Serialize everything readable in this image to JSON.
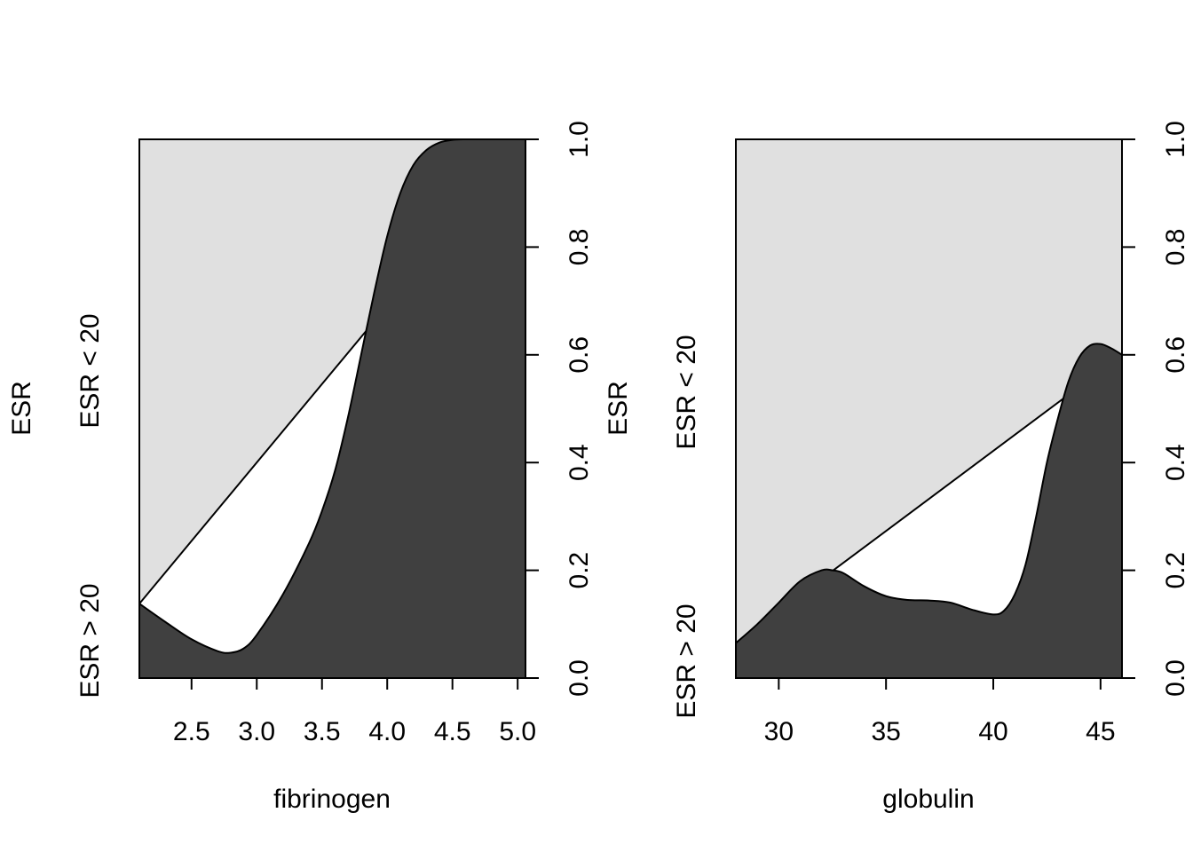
{
  "chart_data": [
    {
      "type": "area",
      "subtype": "conditional-density",
      "xlabel": "fibrinogen",
      "ylabel": "ESR",
      "xlim": [
        2.1,
        5.06
      ],
      "ylim": [
        0,
        1
      ],
      "x_ticks": [
        "2.5",
        "3.0",
        "3.5",
        "4.0",
        "4.5",
        "5.0"
      ],
      "x_tick_values": [
        2.5,
        3.0,
        3.5,
        4.0,
        4.5,
        5.0
      ],
      "y_ticks": [
        "0.0",
        "0.2",
        "0.4",
        "0.6",
        "0.8",
        "1.0"
      ],
      "y_tick_values": [
        0.0,
        0.2,
        0.4,
        0.6,
        0.8,
        1.0
      ],
      "y_axis_side": "right",
      "categories": [
        "ESR > 20",
        "ESR < 20"
      ],
      "category_colors": [
        "#404040",
        "#e0e0e0"
      ],
      "curve": {
        "x": [
          2.1,
          2.3,
          2.5,
          2.7,
          2.8,
          2.9,
          3.0,
          3.2,
          3.4,
          3.5,
          3.6,
          3.7,
          3.8,
          3.9,
          4.0,
          4.1,
          4.2,
          4.3,
          4.4,
          4.5,
          4.6,
          4.7,
          4.8,
          5.06
        ],
        "y": [
          0.138,
          0.104,
          0.072,
          0.05,
          0.047,
          0.055,
          0.08,
          0.155,
          0.25,
          0.31,
          0.385,
          0.485,
          0.6,
          0.715,
          0.82,
          0.9,
          0.952,
          0.98,
          0.994,
          0.999,
          1.0,
          1.0,
          1.0,
          1.0
        ]
      }
    },
    {
      "type": "area",
      "subtype": "conditional-density",
      "xlabel": "globulin",
      "ylabel": "ESR",
      "xlim": [
        28,
        46
      ],
      "ylim": [
        0,
        1
      ],
      "x_ticks": [
        "30",
        "35",
        "40",
        "45"
      ],
      "x_tick_values": [
        30,
        35,
        40,
        45
      ],
      "y_ticks": [
        "0.0",
        "0.2",
        "0.4",
        "0.6",
        "0.8",
        "1.0"
      ],
      "y_tick_values": [
        0.0,
        0.2,
        0.4,
        0.6,
        0.8,
        1.0
      ],
      "y_axis_side": "right",
      "categories": [
        "ESR > 20",
        "ESR < 20"
      ],
      "category_colors": [
        "#404040",
        "#e0e0e0"
      ],
      "curve": {
        "x": [
          28,
          29,
          30,
          31,
          32,
          32.5,
          33,
          34,
          35,
          36,
          37,
          38,
          39,
          40,
          40.5,
          41,
          41.5,
          42,
          42.5,
          43,
          43.5,
          44,
          44.5,
          45,
          45.5,
          46
        ],
        "y": [
          0.065,
          0.1,
          0.14,
          0.18,
          0.2,
          0.2,
          0.195,
          0.17,
          0.152,
          0.145,
          0.144,
          0.14,
          0.127,
          0.118,
          0.125,
          0.155,
          0.21,
          0.3,
          0.4,
          0.48,
          0.55,
          0.595,
          0.617,
          0.62,
          0.612,
          0.6
        ]
      }
    }
  ]
}
